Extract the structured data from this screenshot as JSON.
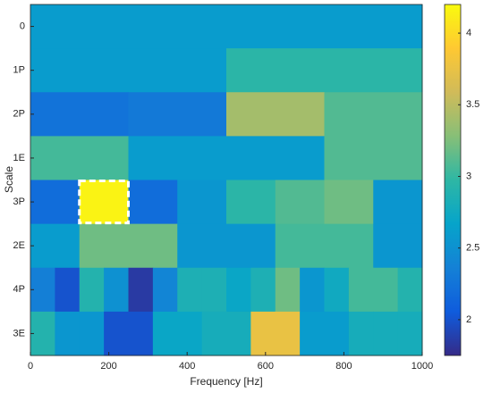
{
  "chart_data": {
    "type": "heatmap",
    "x_label": "Frequency [Hz]",
    "y_label": "Scale",
    "xlim": [
      0,
      1000
    ],
    "xticks": [
      0,
      200,
      400,
      600,
      800,
      1000
    ],
    "colormap": "parula",
    "clim": [
      1.75,
      4.2
    ],
    "cticks": [
      2,
      2.5,
      3,
      3.5,
      4
    ],
    "rows": [
      {
        "label": "0",
        "edges": [
          0,
          1000
        ],
        "values": [
          2.6
        ]
      },
      {
        "label": "1P",
        "edges": [
          0,
          500,
          1000
        ],
        "values": [
          2.6,
          2.95
        ]
      },
      {
        "label": "2P",
        "edges": [
          0,
          250,
          500,
          750,
          1000
        ],
        "values": [
          2.25,
          2.3,
          3.4,
          3.1
        ]
      },
      {
        "label": "1E",
        "edges": [
          0,
          250,
          750,
          1000
        ],
        "values": [
          3.05,
          2.6,
          3.1
        ]
      },
      {
        "label": "3P",
        "edges": [
          0,
          125,
          250,
          375,
          500,
          625,
          750,
          875,
          1000
        ],
        "values": [
          2.2,
          4.15,
          2.2,
          2.55,
          2.95,
          3.1,
          3.2,
          2.55
        ]
      },
      {
        "label": "2E",
        "edges": [
          0,
          125,
          375,
          625,
          875,
          1000
        ],
        "values": [
          2.6,
          3.2,
          2.55,
          3.05,
          2.55
        ]
      },
      {
        "label": "4P",
        "edges": [
          0,
          62.5,
          125,
          187.5,
          250,
          312.5,
          375,
          437.5,
          500,
          562.5,
          625,
          687.5,
          750,
          812.5,
          875,
          937.5,
          1000
        ],
        "values": [
          2.35,
          2.0,
          2.9,
          2.5,
          1.85,
          2.4,
          2.85,
          2.85,
          2.7,
          2.85,
          3.2,
          2.55,
          2.75,
          3.05,
          3.05,
          2.9
        ]
      },
      {
        "label": "3E",
        "edges": [
          0,
          62.5,
          125,
          187.5,
          250,
          312.5,
          375,
          437.5,
          500,
          562.5,
          625,
          687.5,
          750,
          812.5,
          875,
          937.5,
          1000
        ],
        "values": [
          2.9,
          2.55,
          2.55,
          2.0,
          2.0,
          2.7,
          2.7,
          2.8,
          2.8,
          3.75,
          3.75,
          2.6,
          2.6,
          2.8,
          2.8,
          2.8
        ]
      }
    ]
  }
}
